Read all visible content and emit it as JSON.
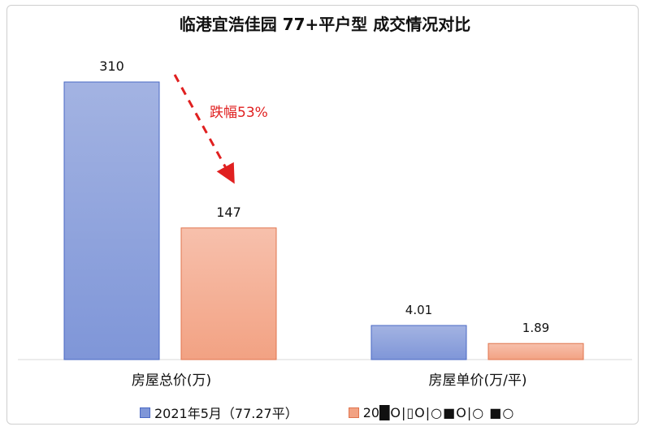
{
  "chart_data": {
    "type": "bar",
    "title": "临港宜浩佳园 77+平户型 成交情况对比",
    "categories": [
      "房屋总价(万)",
      "房屋单价(万/平)"
    ],
    "series": [
      {
        "name": "2021年5月（77.27平）",
        "values": [
          310,
          4.01
        ],
        "labels": [
          "310",
          "4.01"
        ],
        "color_top": "#a3b3e2",
        "color_bottom": "#7f96d8",
        "border": "#4a68c4"
      },
      {
        "name": "20",
        "values": [
          147,
          1.89
        ],
        "labels": [
          "147",
          "1.89"
        ],
        "color_top": "#f7c0ac",
        "color_bottom": "#f2a283",
        "border": "#e0744e"
      }
    ],
    "legend_tail": "█O|▯O|○■O|○ ■○",
    "annotation": {
      "text": "跌幅53%",
      "color": "#e02020"
    },
    "legend_position": "bottom",
    "grid": false
  }
}
